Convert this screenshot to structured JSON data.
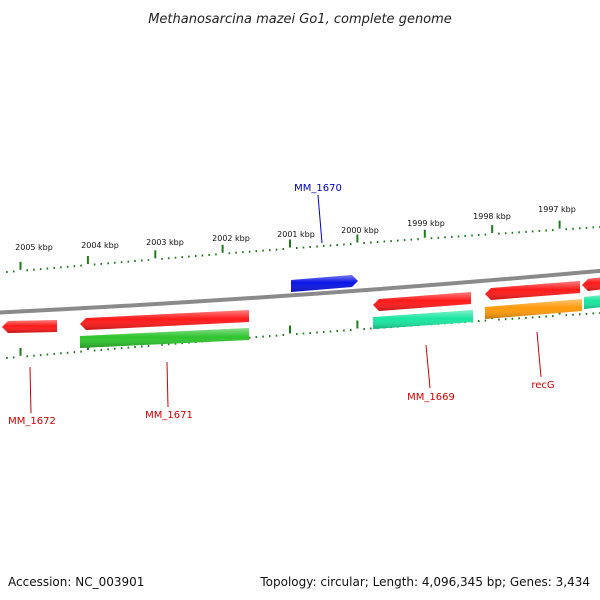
{
  "title": "Methanosarcina mazei Go1, complete genome",
  "footer": {
    "accession": "Accession: NC_003901",
    "info": "Topology: circular; Length: 4,096,345 bp; Genes: 3,434"
  },
  "colors": {
    "backbone": "#8a8a8a",
    "tick": "#1f7a1f",
    "label_red": "#cc0000",
    "label_blue": "#0000cc"
  },
  "ruler": {
    "labels": [
      "2005 kbp",
      "2004 kbp",
      "2003 kbp",
      "2002 kbp",
      "2001 kbp",
      "2000 kbp",
      "1999 kbp",
      "1998 kbp",
      "1997 kbp"
    ]
  },
  "genes": [
    {
      "id": "gene-mm-1672",
      "label": "MM_1672",
      "color": "#ff1a1a",
      "label_color": "#cc0000"
    },
    {
      "id": "gene-mm-1671",
      "label": "MM_1671",
      "color": "#ff1a1a",
      "label_color": "#cc0000"
    },
    {
      "id": "gene-mm-1670",
      "label": "MM_1670",
      "color": "#0a14e6",
      "label_color": "#0000cc"
    },
    {
      "id": "gene-mm-1669",
      "label": "MM_1669",
      "color": "#ff1a1a",
      "label_color": "#cc0000"
    },
    {
      "id": "gene-recg",
      "label": "recG",
      "color": "#ff1a1a",
      "label_color": "#cc0000"
    },
    {
      "id": "gene-unlabeled-right",
      "label": "",
      "color": "#ff1a1a",
      "label_color": "#cc0000"
    }
  ],
  "features": [
    {
      "id": "feature-mm-1671-green",
      "color": "#2ec42e"
    },
    {
      "id": "feature-mm-1669-teal",
      "color": "#19e6a0"
    },
    {
      "id": "feature-recg-orange",
      "color": "#ff9a0a"
    },
    {
      "id": "feature-right-teal",
      "color": "#19e6a0"
    }
  ]
}
